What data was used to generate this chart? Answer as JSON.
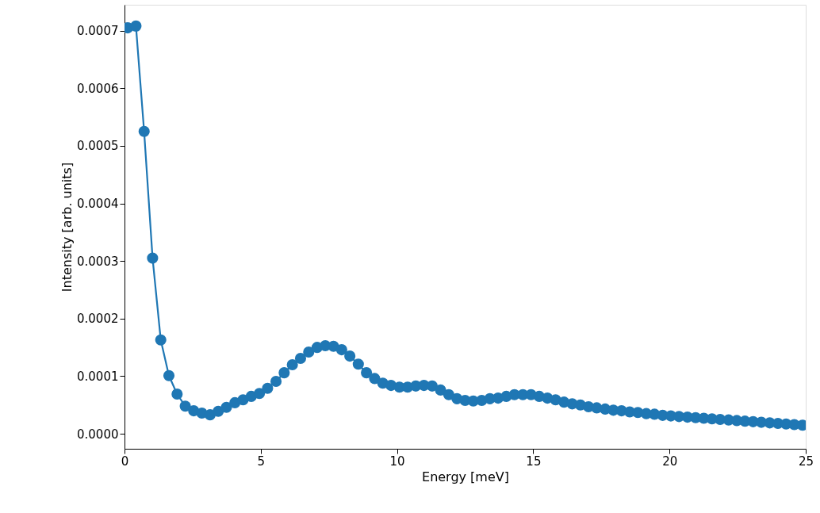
{
  "chart_data": {
    "type": "line",
    "xlabel": "Energy [meV]",
    "ylabel": "Intensity [arb. units]",
    "x": [
      0.12,
      0.42,
      0.72,
      1.03,
      1.33,
      1.63,
      1.93,
      2.23,
      2.54,
      2.84,
      3.14,
      3.44,
      3.74,
      4.05,
      4.35,
      4.65,
      4.95,
      5.25,
      5.56,
      5.86,
      6.16,
      6.46,
      6.76,
      7.07,
      7.37,
      7.67,
      7.97,
      8.27,
      8.58,
      8.88,
      9.18,
      9.48,
      9.78,
      10.09,
      10.39,
      10.69,
      10.99,
      11.29,
      11.6,
      11.9,
      12.2,
      12.5,
      12.8,
      13.11,
      13.41,
      13.71,
      14.01,
      14.31,
      14.62,
      14.92,
      15.22,
      15.52,
      15.82,
      16.13,
      16.43,
      16.73,
      17.03,
      17.33,
      17.64,
      17.94,
      18.24,
      18.54,
      18.84,
      19.15,
      19.45,
      19.75,
      20.05,
      20.35,
      20.66,
      20.96,
      21.26,
      21.56,
      21.86,
      22.17,
      22.47,
      22.77,
      23.07,
      23.37,
      23.68,
      23.98,
      24.28,
      24.58,
      24.88
    ],
    "series": [
      {
        "color": "#1f77b4",
        "values": [
          0.000705,
          0.000708,
          0.000525,
          0.000305,
          0.000163,
          0.000101,
          6.9e-05,
          4.8e-05,
          4e-05,
          3.6e-05,
          3.3e-05,
          3.9e-05,
          4.6e-05,
          5.4e-05,
          5.9e-05,
          6.5e-05,
          7e-05,
          7.9e-05,
          9.1e-05,
          0.000106,
          0.00012,
          0.000131,
          0.000142,
          0.00015,
          0.000153,
          0.000152,
          0.000146,
          0.000135,
          0.000121,
          0.000106,
          9.6e-05,
          8.8e-05,
          8.4e-05,
          8.1e-05,
          8.1e-05,
          8.3e-05,
          8.4e-05,
          8.3e-05,
          7.6e-05,
          6.8e-05,
          6.1e-05,
          5.8e-05,
          5.7e-05,
          5.8e-05,
          6.1e-05,
          6.2e-05,
          6.5e-05,
          6.8e-05,
          6.8e-05,
          6.8e-05,
          6.5e-05,
          6.2e-05,
          5.9e-05,
          5.5e-05,
          5.2e-05,
          5e-05,
          4.7e-05,
          4.5e-05,
          4.3e-05,
          4.1e-05,
          4e-05,
          3.8e-05,
          3.7e-05,
          3.5e-05,
          3.4e-05,
          3.2e-05,
          3.1e-05,
          3e-05,
          2.9e-05,
          2.8e-05,
          2.7e-05,
          2.6e-05,
          2.5e-05,
          2.4e-05,
          2.3e-05,
          2.2e-05,
          2.1e-05,
          2e-05,
          1.9e-05,
          1.8e-05,
          1.7e-05,
          1.6e-05,
          1.5e-05
        ]
      }
    ],
    "marker": "circle",
    "line_style": "solid",
    "grid": false,
    "xlim": [
      0,
      25
    ],
    "xticks": [
      0,
      5,
      10,
      15,
      20,
      25
    ],
    "ylim": [
      -2.6e-05,
      0.000745
    ],
    "yticks": [
      {
        "value": 0,
        "label": "0.0000"
      },
      {
        "value": 0.0001,
        "label": "0.0001"
      },
      {
        "value": 0.0002,
        "label": "0.0002"
      },
      {
        "value": 0.0003,
        "label": "0.0003"
      },
      {
        "value": 0.0004,
        "label": "0.0004"
      },
      {
        "value": 0.0005,
        "label": "0.0005"
      },
      {
        "value": 0.0006,
        "label": "0.0006"
      },
      {
        "value": 0.0007,
        "label": "0.0007"
      }
    ]
  }
}
